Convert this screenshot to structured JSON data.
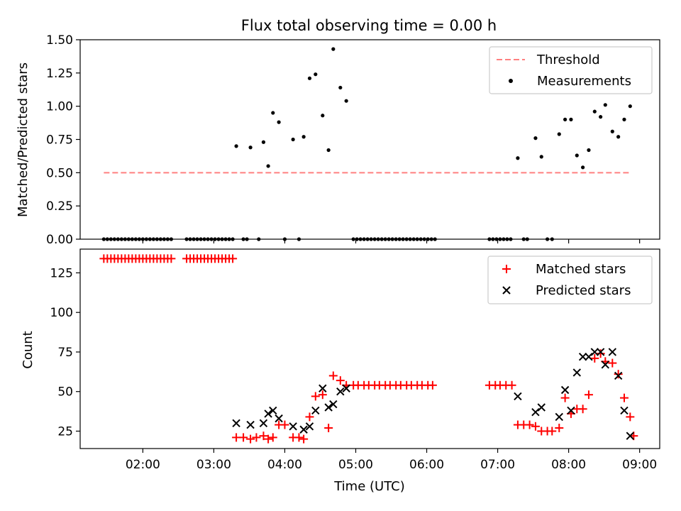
{
  "figure": {
    "title": "Flux total observing time = 0.00 h",
    "xlabel": "Time (UTC)",
    "xticks": [
      "02:00",
      "03:00",
      "04:00",
      "05:00",
      "06:00",
      "07:00",
      "08:00",
      "09:00"
    ]
  },
  "chart_data": [
    {
      "type": "scatter",
      "ylabel": "Matched/Predicted stars",
      "xlim": [
        "01:07",
        "09:17"
      ],
      "ylim": [
        0,
        1.5
      ],
      "yticks": [
        "0.00",
        "0.25",
        "0.50",
        "0.75",
        "1.00",
        "1.25",
        "1.50"
      ],
      "legend_position": "top-right",
      "threshold": {
        "name": "Threshold",
        "value": 0.5,
        "x_start": "01:27",
        "x_end": "08:52",
        "color": "#ff8080",
        "style": "dashed"
      },
      "series": [
        {
          "name": "Measurements",
          "color": "#000000",
          "points": [
            [
              "01:27",
              0
            ],
            [
              "01:30",
              0
            ],
            [
              "01:33",
              0
            ],
            [
              "01:36",
              0
            ],
            [
              "01:39",
              0
            ],
            [
              "01:42",
              0
            ],
            [
              "01:45",
              0
            ],
            [
              "01:48",
              0
            ],
            [
              "01:51",
              0
            ],
            [
              "01:54",
              0
            ],
            [
              "01:57",
              0
            ],
            [
              "02:00",
              0
            ],
            [
              "02:03",
              0
            ],
            [
              "02:06",
              0
            ],
            [
              "02:09",
              0
            ],
            [
              "02:12",
              0
            ],
            [
              "02:15",
              0
            ],
            [
              "02:18",
              0
            ],
            [
              "02:21",
              0
            ],
            [
              "02:24",
              0
            ],
            [
              "02:37",
              0
            ],
            [
              "02:40",
              0
            ],
            [
              "02:43",
              0
            ],
            [
              "02:46",
              0
            ],
            [
              "02:49",
              0
            ],
            [
              "02:52",
              0
            ],
            [
              "02:55",
              0
            ],
            [
              "02:58",
              0
            ],
            [
              "03:01",
              0
            ],
            [
              "03:04",
              0
            ],
            [
              "03:07",
              0
            ],
            [
              "03:10",
              0
            ],
            [
              "03:13",
              0
            ],
            [
              "03:16",
              0
            ],
            [
              "03:19",
              0.7
            ],
            [
              "03:25",
              0
            ],
            [
              "03:28",
              0
            ],
            [
              "03:31",
              0.69
            ],
            [
              "03:38",
              0
            ],
            [
              "03:42",
              0.73
            ],
            [
              "03:46",
              0.55
            ],
            [
              "03:50",
              0.95
            ],
            [
              "03:55",
              0.88
            ],
            [
              "04:00",
              0
            ],
            [
              "04:07",
              0.75
            ],
            [
              "04:12",
              0
            ],
            [
              "04:16",
              0.77
            ],
            [
              "04:21",
              1.21
            ],
            [
              "04:26",
              1.24
            ],
            [
              "04:32",
              0.93
            ],
            [
              "04:37",
              0.67
            ],
            [
              "04:41",
              1.43
            ],
            [
              "04:47",
              1.14
            ],
            [
              "04:52",
              1.04
            ],
            [
              "04:58",
              0
            ],
            [
              "05:01",
              0
            ],
            [
              "05:04",
              0
            ],
            [
              "05:07",
              0
            ],
            [
              "05:10",
              0
            ],
            [
              "05:13",
              0
            ],
            [
              "05:16",
              0
            ],
            [
              "05:19",
              0
            ],
            [
              "05:22",
              0
            ],
            [
              "05:25",
              0
            ],
            [
              "05:28",
              0
            ],
            [
              "05:31",
              0
            ],
            [
              "05:34",
              0
            ],
            [
              "05:37",
              0
            ],
            [
              "05:40",
              0
            ],
            [
              "05:43",
              0
            ],
            [
              "05:46",
              0
            ],
            [
              "05:49",
              0
            ],
            [
              "05:52",
              0
            ],
            [
              "05:55",
              0
            ],
            [
              "05:58",
              0
            ],
            [
              "06:01",
              0
            ],
            [
              "06:04",
              0
            ],
            [
              "06:07",
              0
            ],
            [
              "06:53",
              0
            ],
            [
              "06:56",
              0
            ],
            [
              "06:59",
              0
            ],
            [
              "07:02",
              0
            ],
            [
              "07:05",
              0
            ],
            [
              "07:08",
              0
            ],
            [
              "07:11",
              0
            ],
            [
              "07:17",
              0.61
            ],
            [
              "07:22",
              0
            ],
            [
              "07:25",
              0
            ],
            [
              "07:32",
              0.76
            ],
            [
              "07:37",
              0.62
            ],
            [
              "07:42",
              0
            ],
            [
              "07:46",
              0
            ],
            [
              "07:52",
              0.79
            ],
            [
              "07:57",
              0.9
            ],
            [
              "08:02",
              0.9
            ],
            [
              "08:07",
              0.63
            ],
            [
              "08:12",
              0.54
            ],
            [
              "08:17",
              0.67
            ],
            [
              "08:22",
              0.96
            ],
            [
              "08:27",
              0.92
            ],
            [
              "08:31",
              1.01
            ],
            [
              "08:37",
              0.81
            ],
            [
              "08:42",
              0.77
            ],
            [
              "08:47",
              0.9
            ],
            [
              "08:52",
              1.0
            ]
          ]
        }
      ]
    },
    {
      "type": "scatter",
      "ylabel": "Count",
      "xlim": [
        "01:07",
        "09:17"
      ],
      "ylim": [
        14,
        140
      ],
      "yticks": [
        "25",
        "50",
        "75",
        "100",
        "125"
      ],
      "legend_position": "top-right",
      "series": [
        {
          "name": "Matched stars",
          "marker": "plus",
          "color": "#ff0000",
          "points": [
            [
              "01:27",
              134
            ],
            [
              "01:30",
              134
            ],
            [
              "01:33",
              134
            ],
            [
              "01:36",
              134
            ],
            [
              "01:39",
              134
            ],
            [
              "01:42",
              134
            ],
            [
              "01:45",
              134
            ],
            [
              "01:48",
              134
            ],
            [
              "01:51",
              134
            ],
            [
              "01:54",
              134
            ],
            [
              "01:57",
              134
            ],
            [
              "02:00",
              134
            ],
            [
              "02:03",
              134
            ],
            [
              "02:06",
              134
            ],
            [
              "02:09",
              134
            ],
            [
              "02:12",
              134
            ],
            [
              "02:15",
              134
            ],
            [
              "02:18",
              134
            ],
            [
              "02:21",
              134
            ],
            [
              "02:24",
              134
            ],
            [
              "02:37",
              134
            ],
            [
              "02:40",
              134
            ],
            [
              "02:43",
              134
            ],
            [
              "02:46",
              134
            ],
            [
              "02:49",
              134
            ],
            [
              "02:52",
              134
            ],
            [
              "02:55",
              134
            ],
            [
              "02:58",
              134
            ],
            [
              "03:01",
              134
            ],
            [
              "03:04",
              134
            ],
            [
              "03:07",
              134
            ],
            [
              "03:10",
              134
            ],
            [
              "03:13",
              134
            ],
            [
              "03:16",
              134
            ],
            [
              "03:19",
              21
            ],
            [
              "03:25",
              21
            ],
            [
              "03:31",
              20
            ],
            [
              "03:36",
              21
            ],
            [
              "03:42",
              22
            ],
            [
              "03:46",
              20
            ],
            [
              "03:50",
              21
            ],
            [
              "03:55",
              29
            ],
            [
              "04:00",
              29
            ],
            [
              "04:07",
              21
            ],
            [
              "04:12",
              21
            ],
            [
              "04:16",
              20
            ],
            [
              "04:21",
              34
            ],
            [
              "04:26",
              47
            ],
            [
              "04:32",
              48
            ],
            [
              "04:37",
              27
            ],
            [
              "04:41",
              60
            ],
            [
              "04:47",
              57
            ],
            [
              "04:52",
              54
            ],
            [
              "04:58",
              54
            ],
            [
              "05:02",
              54
            ],
            [
              "05:07",
              54
            ],
            [
              "05:11",
              54
            ],
            [
              "05:16",
              54
            ],
            [
              "05:20",
              54
            ],
            [
              "05:25",
              54
            ],
            [
              "05:29",
              54
            ],
            [
              "05:34",
              54
            ],
            [
              "05:38",
              54
            ],
            [
              "05:43",
              54
            ],
            [
              "05:47",
              54
            ],
            [
              "05:52",
              54
            ],
            [
              "05:56",
              54
            ],
            [
              "06:01",
              54
            ],
            [
              "06:05",
              54
            ],
            [
              "06:53",
              54
            ],
            [
              "06:58",
              54
            ],
            [
              "07:02",
              54
            ],
            [
              "07:07",
              54
            ],
            [
              "07:12",
              54
            ],
            [
              "07:17",
              29
            ],
            [
              "07:22",
              29
            ],
            [
              "07:27",
              29
            ],
            [
              "07:32",
              28
            ],
            [
              "07:37",
              25
            ],
            [
              "07:42",
              25
            ],
            [
              "07:46",
              25
            ],
            [
              "07:52",
              27
            ],
            [
              "07:57",
              46
            ],
            [
              "08:02",
              36
            ],
            [
              "08:07",
              39
            ],
            [
              "08:12",
              39
            ],
            [
              "08:17",
              48
            ],
            [
              "08:22",
              71
            ],
            [
              "08:27",
              74
            ],
            [
              "08:31",
              69
            ],
            [
              "08:37",
              68
            ],
            [
              "08:42",
              61
            ],
            [
              "08:47",
              46
            ],
            [
              "08:52",
              34
            ],
            [
              "08:55",
              22
            ]
          ]
        },
        {
          "name": "Predicted stars",
          "marker": "x",
          "color": "#000000",
          "points": [
            [
              "03:19",
              30
            ],
            [
              "03:31",
              29
            ],
            [
              "03:42",
              30
            ],
            [
              "03:46",
              36
            ],
            [
              "03:50",
              38
            ],
            [
              "03:55",
              33
            ],
            [
              "04:07",
              28
            ],
            [
              "04:16",
              26
            ],
            [
              "04:21",
              28
            ],
            [
              "04:26",
              38
            ],
            [
              "04:32",
              52
            ],
            [
              "04:37",
              40
            ],
            [
              "04:41",
              42
            ],
            [
              "04:47",
              50
            ],
            [
              "04:52",
              52
            ],
            [
              "07:17",
              47
            ],
            [
              "07:32",
              37
            ],
            [
              "07:37",
              40
            ],
            [
              "07:52",
              34
            ],
            [
              "07:57",
              51
            ],
            [
              "08:02",
              38
            ],
            [
              "08:07",
              62
            ],
            [
              "08:12",
              72
            ],
            [
              "08:17",
              72
            ],
            [
              "08:22",
              75
            ],
            [
              "08:27",
              75
            ],
            [
              "08:31",
              67
            ],
            [
              "08:37",
              75
            ],
            [
              "08:42",
              60
            ],
            [
              "08:47",
              38
            ],
            [
              "08:52",
              22
            ]
          ]
        }
      ]
    }
  ]
}
